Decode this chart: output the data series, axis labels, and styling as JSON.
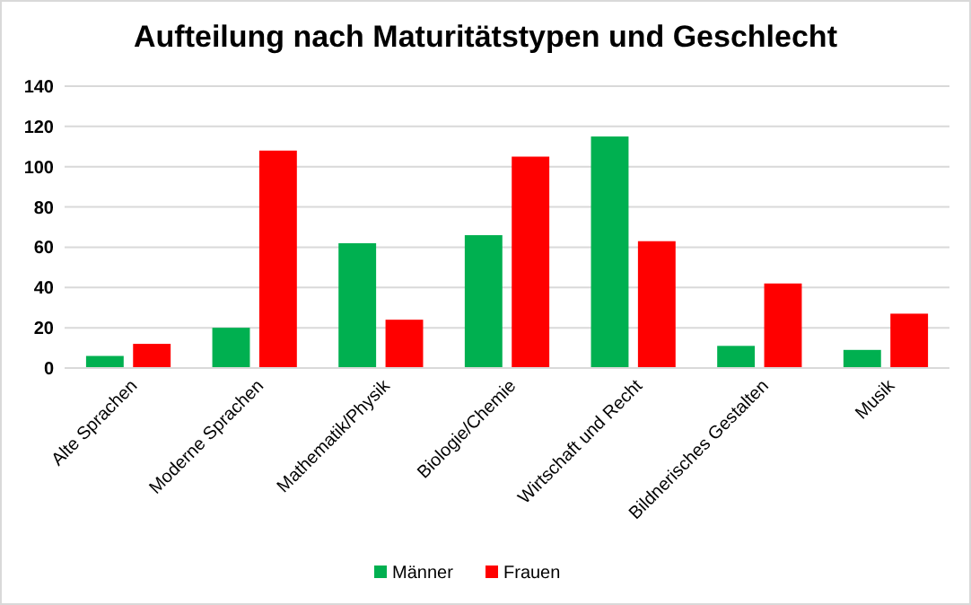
{
  "chart_data": {
    "type": "bar",
    "title": "Aufteilung nach Maturitätstypen und Geschlecht",
    "categories": [
      "Alte Sprachen",
      "Moderne Sprachen",
      "Mathematik/Physik",
      "Biologie/Chemie",
      "Wirtschaft und Recht",
      "Bildnerisches Gestalten",
      "Musik"
    ],
    "series": [
      {
        "name": "Männer",
        "color": "#00b050",
        "values": [
          6,
          20,
          62,
          66,
          115,
          11,
          9
        ]
      },
      {
        "name": "Frauen",
        "color": "#ff0000",
        "values": [
          12,
          108,
          24,
          105,
          63,
          42,
          27
        ]
      }
    ],
    "ylim": [
      0,
      140
    ],
    "yticks": [
      0,
      20,
      40,
      60,
      80,
      100,
      120,
      140
    ],
    "grid": "y",
    "legend": "bottom"
  }
}
